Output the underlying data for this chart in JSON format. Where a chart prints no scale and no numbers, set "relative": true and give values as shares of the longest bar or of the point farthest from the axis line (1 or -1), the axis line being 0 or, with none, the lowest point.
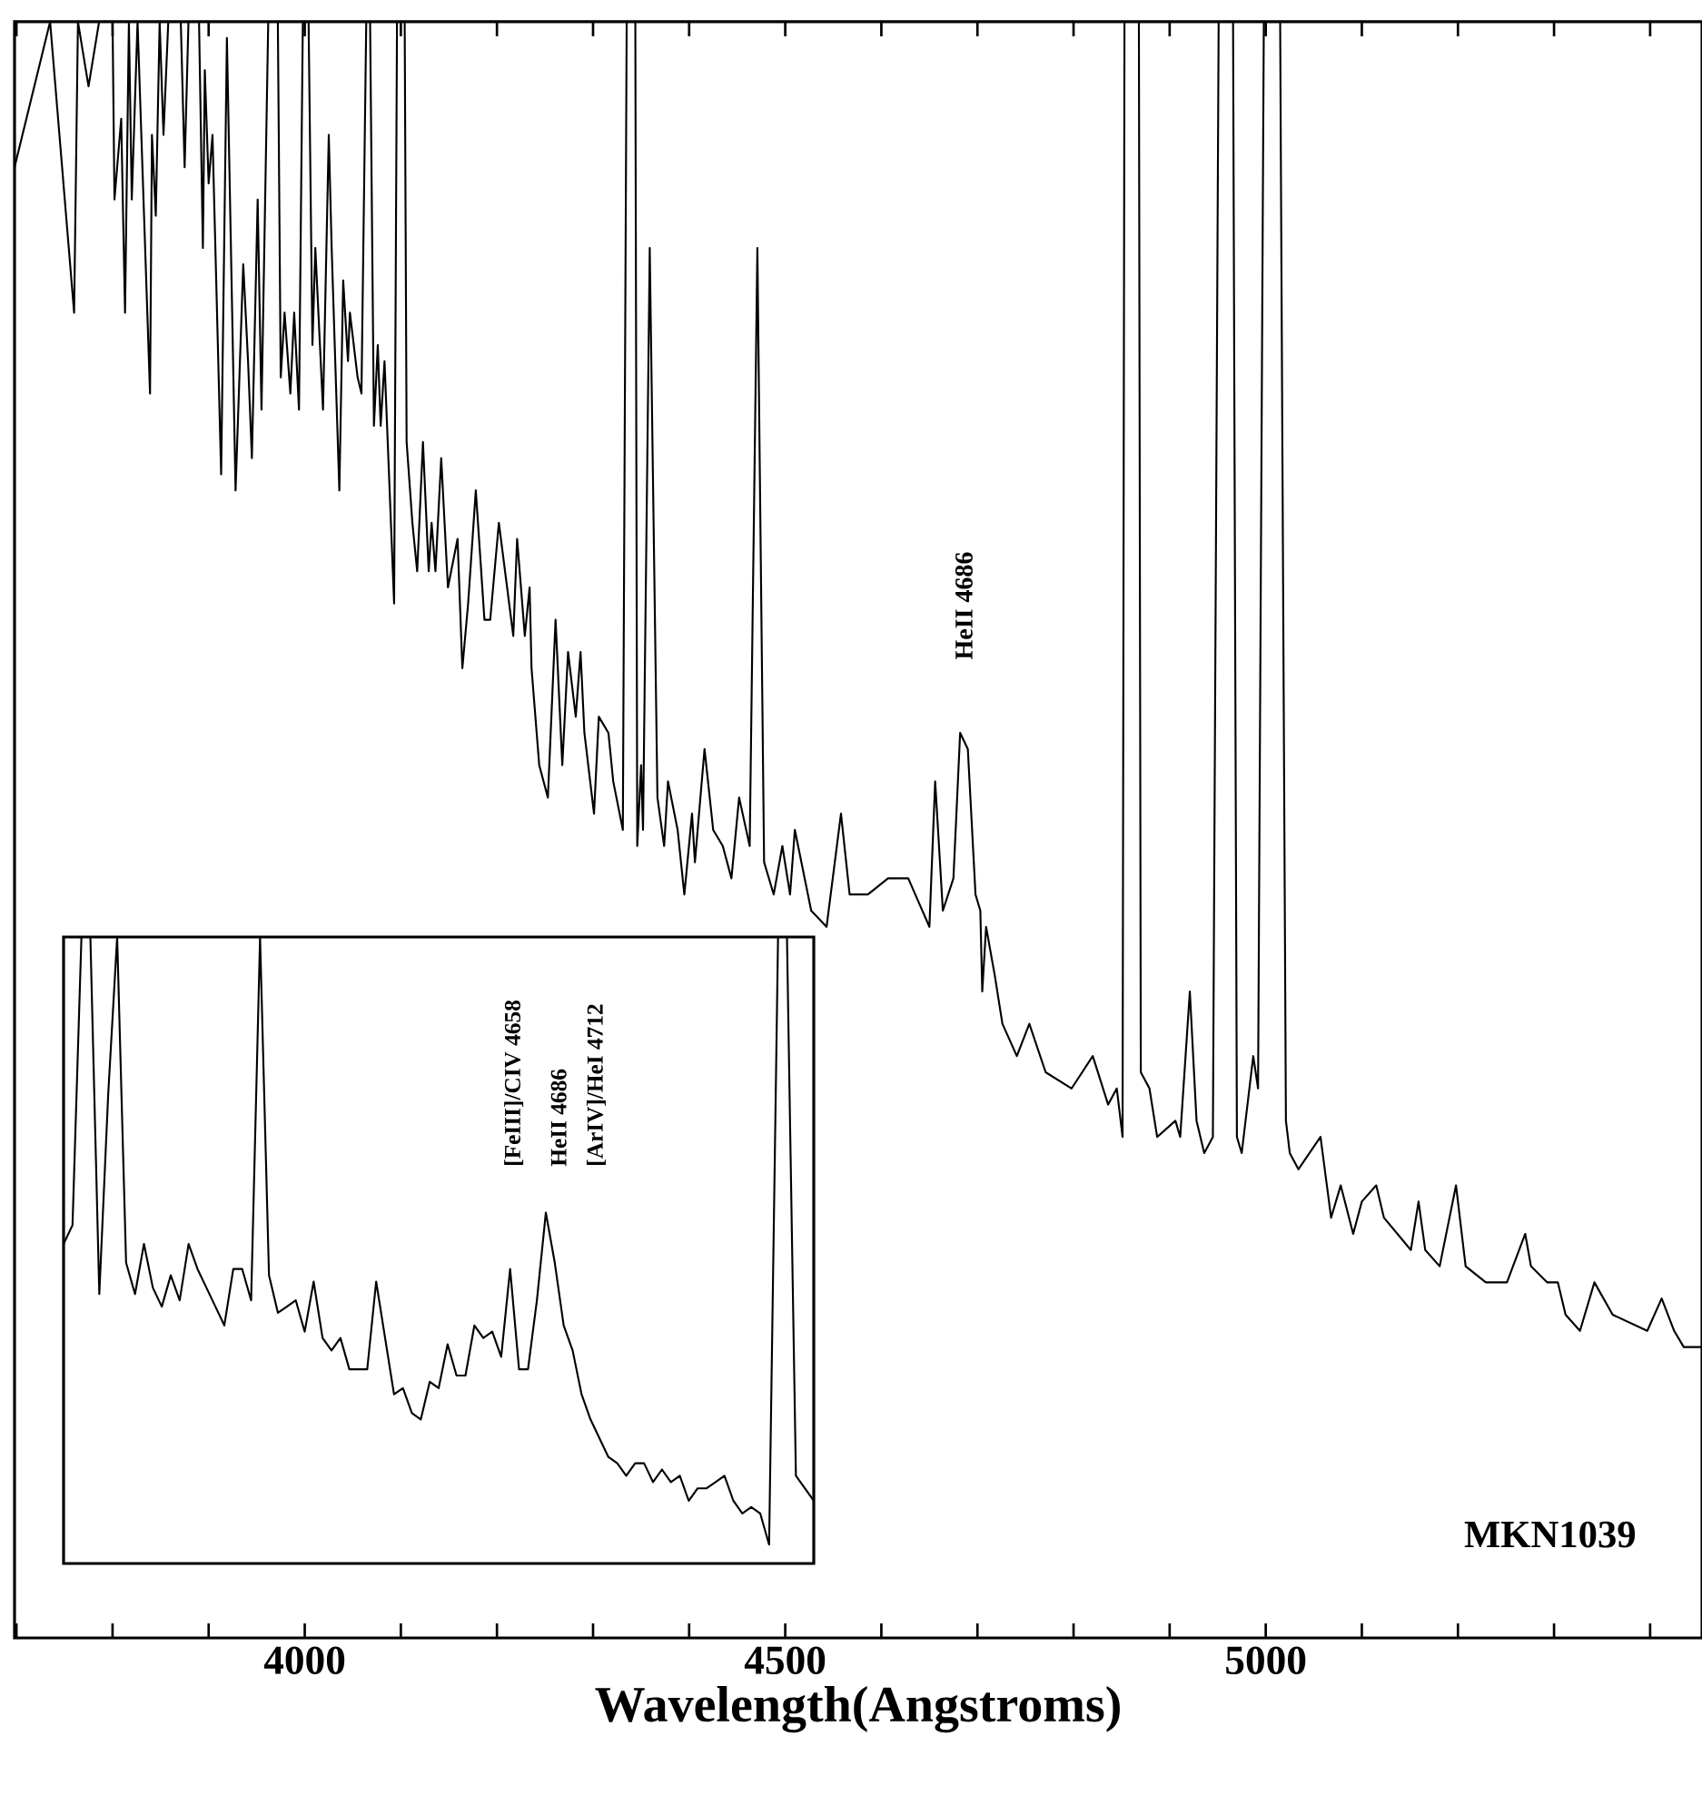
{
  "chart_data": [
    {
      "type": "line",
      "relative": true,
      "xlabel": "Wavelength(Angstroms)",
      "xlim": [
        3698,
        5454
      ],
      "xticks": [
        {
          "value": 3700,
          "label": null
        },
        {
          "value": 3800,
          "label": null
        },
        {
          "value": 3900,
          "label": null
        },
        4000,
        {
          "value": 4100,
          "label": null
        },
        {
          "value": 4200,
          "label": null
        },
        {
          "value": 4300,
          "label": null
        },
        {
          "value": 4400,
          "label": null
        },
        4500,
        {
          "value": 4600,
          "label": null
        },
        {
          "value": 4700,
          "label": null
        },
        {
          "value": 4800,
          "label": null
        },
        {
          "value": 4900,
          "label": null
        },
        5000,
        {
          "value": 5100,
          "label": null
        },
        {
          "value": 5200,
          "label": null
        },
        {
          "value": 5300,
          "label": null
        },
        {
          "value": 5400,
          "label": null
        }
      ],
      "series": [
        {
          "color": "#000000",
          "x": [
            3698,
            3735,
            3760,
            3764,
            3775,
            3786,
            3800,
            3802,
            3809,
            3813,
            3817,
            3820,
            3826,
            3839,
            3841,
            3845,
            3849,
            3853,
            3858,
            3871,
            3875,
            3879,
            3890,
            3894,
            3896,
            3900,
            3904,
            3913,
            3919,
            3928,
            3936,
            3941,
            3945,
            3951,
            3955,
            3962,
            3972,
            3975,
            3979,
            3985,
            3989,
            3994,
            3998,
            4004,
            4008,
            4011,
            4019,
            4025,
            4028,
            4036,
            4040,
            4045,
            4047,
            4055,
            4059,
            4064,
            4068,
            4072,
            4076,
            4079,
            4083,
            4093,
            4096,
            4104,
            4106,
            4112,
            4117,
            4123,
            4129,
            4132,
            4136,
            4142,
            4149,
            4159,
            4164,
            4170,
            4178,
            4187,
            4193,
            4202,
            4217,
            4221,
            4229,
            4234,
            4236,
            4244,
            4253,
            4261,
            4268,
            4274,
            4282,
            4287,
            4291,
            4301,
            4306,
            4316,
            4321,
            4331,
            4335,
            4344,
            4346,
            4350,
            4352,
            4359,
            4367,
            4374,
            4378,
            4388,
            4395,
            4403,
            4406,
            4416,
            4425,
            4435,
            4444,
            4452,
            4463,
            4471,
            4478,
            4488,
            4497,
            4505,
            4510,
            4527,
            4543,
            4558,
            4567,
            4586,
            4607,
            4628,
            4650,
            4656,
            4664,
            4675,
            4682,
            4690,
            4698,
            4703,
            4705,
            4709,
            4718,
            4726,
            4741,
            4754,
            4771,
            4798,
            4820,
            4836,
            4845,
            4851,
            4853,
            4868,
            4870,
            4879,
            4887,
            4906,
            4911,
            4921,
            4928,
            4936,
            4945,
            4951,
            4966,
            4970,
            4975,
            4987,
            4992,
            4998,
            5015,
            5021,
            5025,
            5034,
            5057,
            5068,
            5078,
            5091,
            5100,
            5115,
            5123,
            5151,
            5159,
            5166,
            5181,
            5198,
            5208,
            5229,
            5251,
            5270,
            5276,
            5293,
            5304,
            5312,
            5327,
            5342,
            5361,
            5397,
            5412,
            5425,
            5435,
            5454
          ],
          "values": [
            0.91,
            1,
            0.82,
            1,
            0.96,
            1,
            1,
            0.89,
            0.94,
            0.82,
            1,
            0.89,
            1,
            0.77,
            0.93,
            0.88,
            1,
            0.93,
            1,
            1,
            0.91,
            1,
            1,
            0.86,
            0.97,
            0.9,
            0.93,
            0.72,
            0.99,
            0.71,
            0.85,
            0.79,
            0.73,
            0.89,
            0.76,
            1,
            1,
            0.78,
            0.82,
            0.77,
            0.82,
            0.76,
            1,
            1,
            0.8,
            0.86,
            0.76,
            0.93,
            0.86,
            0.71,
            0.84,
            0.79,
            0.82,
            0.78,
            0.77,
            1,
            1,
            0.75,
            0.8,
            0.75,
            0.79,
            0.64,
            1,
            1,
            0.74,
            0.69,
            0.66,
            0.74,
            0.66,
            0.69,
            0.66,
            0.73,
            0.65,
            0.68,
            0.6,
            0.64,
            0.71,
            0.63,
            0.63,
            0.69,
            0.62,
            0.68,
            0.62,
            0.65,
            0.6,
            0.54,
            0.52,
            0.63,
            0.54,
            0.61,
            0.57,
            0.61,
            0.56,
            0.51,
            0.57,
            0.56,
            0.53,
            0.5,
            1,
            1,
            0.49,
            0.54,
            0.5,
            0.86,
            0.52,
            0.49,
            0.53,
            0.5,
            0.46,
            0.51,
            0.48,
            0.55,
            0.5,
            0.49,
            0.47,
            0.52,
            0.49,
            0.86,
            0.48,
            0.46,
            0.49,
            0.46,
            0.5,
            0.45,
            0.44,
            0.51,
            0.46,
            0.46,
            0.47,
            0.47,
            0.44,
            0.53,
            0.45,
            0.47,
            0.56,
            0.55,
            0.46,
            0.45,
            0.4,
            0.44,
            0.41,
            0.38,
            0.36,
            0.38,
            0.35,
            0.34,
            0.36,
            0.33,
            0.34,
            0.31,
            1,
            1,
            0.35,
            0.34,
            0.31,
            0.32,
            0.31,
            0.4,
            0.32,
            0.3,
            0.31,
            1,
            1,
            0.31,
            0.3,
            0.36,
            0.34,
            1,
            1,
            0.32,
            0.3,
            0.29,
            0.31,
            0.26,
            0.28,
            0.25,
            0.27,
            0.28,
            0.26,
            0.24,
            0.27,
            0.24,
            0.23,
            0.28,
            0.23,
            0.22,
            0.22,
            0.25,
            0.23,
            0.22,
            0.22,
            0.2,
            0.19,
            0.22,
            0.2,
            0.19,
            0.21,
            0.19,
            0.18,
            0.18
          ]
        }
      ],
      "annotations": [
        {
          "text": "HeII 4686",
          "x": 4686,
          "y": 0.56
        },
        "MKN1039"
      ]
    },
    {
      "type": "line",
      "relative": true,
      "tick_labels": false,
      "categories": [
        null,
        null,
        null,
        null,
        null,
        null,
        null,
        null,
        null,
        null,
        null,
        null,
        null,
        null,
        null,
        null,
        null,
        null,
        null,
        null,
        null,
        null,
        null,
        null,
        null,
        null,
        null,
        null,
        null,
        null,
        null,
        null,
        null,
        null,
        null,
        null,
        null,
        null,
        null,
        null,
        null,
        null,
        null,
        null,
        null,
        null,
        null,
        null,
        null,
        null,
        null,
        null,
        null,
        null,
        null,
        null,
        null,
        null,
        null,
        null,
        null,
        null,
        null,
        null,
        null,
        null,
        null,
        null,
        null,
        null,
        null,
        null,
        null,
        null,
        null,
        null,
        null,
        null,
        null,
        null,
        null,
        null,
        null,
        null,
        null
      ],
      "series": [
        {
          "color": "#000000",
          "values": [
            0.51,
            0.54,
            1,
            1,
            0.43,
            0.75,
            1,
            0.48,
            0.43,
            0.51,
            0.44,
            0.41,
            0.46,
            0.42,
            0.51,
            0.47,
            0.44,
            0.41,
            0.38,
            0.47,
            0.47,
            0.42,
            1,
            0.46,
            0.4,
            0.41,
            0.42,
            0.37,
            0.45,
            0.36,
            0.34,
            0.36,
            0.31,
            0.31,
            0.31,
            0.45,
            0.36,
            0.27,
            0.28,
            0.24,
            0.23,
            0.29,
            0.28,
            0.35,
            0.3,
            0.3,
            0.38,
            0.36,
            0.37,
            0.33,
            0.47,
            0.31,
            0.31,
            0.42,
            0.56,
            0.48,
            0.38,
            0.34,
            0.27,
            0.23,
            0.2,
            0.17,
            0.16,
            0.14,
            0.16,
            0.16,
            0.13,
            0.15,
            0.13,
            0.14,
            0.1,
            0.12,
            0.12,
            0.13,
            0.14,
            0.1,
            0.08,
            0.09,
            0.08,
            0.03,
            1,
            1,
            0.14,
            0.12,
            0.1
          ]
        }
      ],
      "annotations": [
        "[FeIII]/CIV 4658",
        "HeII 4686",
        "[ArIV]/HeI 4712"
      ]
    }
  ]
}
